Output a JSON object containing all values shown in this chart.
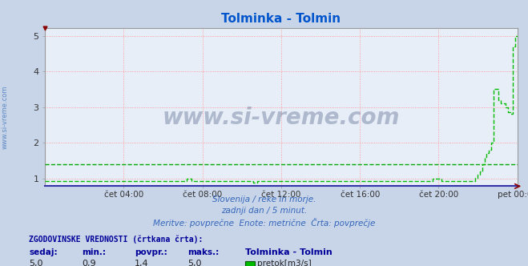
{
  "title": "Tolminka - Tolmin",
  "title_color": "#0055cc",
  "bg_color": "#c8d4e8",
  "plot_bg_color": "#e8eef8",
  "subtitle_lines": [
    "Slovenija / reke in morje.",
    "zadnji dan / 5 minut.",
    "Meritve: povprečne  Enote: metrične  Črta: povprečje"
  ],
  "xlabel_ticks": [
    "čet 04:00",
    "čet 08:00",
    "čet 12:00",
    "čet 16:00",
    "čet 20:00",
    "pet 00:00"
  ],
  "xlabel_tick_positions": [
    0.1667,
    0.3333,
    0.5,
    0.6667,
    0.8333,
    1.0
  ],
  "ylabel_ticks": [
    1,
    2,
    3,
    4,
    5
  ],
  "ylim": [
    0.78,
    5.22
  ],
  "xlim": [
    0.0,
    1.0
  ],
  "avg_line_y": 1.4,
  "avg_line_color": "#00aa00",
  "grid_color": "#ff8888",
  "watermark": "www.si-vreme.com",
  "watermark_color": "#1a3060",
  "watermark_alpha": 0.28,
  "sidebar_text": "www.si-vreme.com",
  "sidebar_color": "#4477bb",
  "stats_label": "ZGODOVINSKE VREDNOSTI (črtkana črta):",
  "stats_color": "#000099",
  "stats_headers": [
    "sedaj:",
    "min.:",
    "povpr.:",
    "maks.:"
  ],
  "stats_values": [
    "5,0",
    "0,9",
    "1,4",
    "5,0"
  ],
  "station_name": "Tolminka - Tolmin",
  "unit_label": "pretok[m3/s]",
  "flow_line_color": "#00bb00",
  "flow_data_x": [
    0.0,
    0.01,
    0.02,
    0.03,
    0.04,
    0.05,
    0.06,
    0.07,
    0.08,
    0.09,
    0.1,
    0.11,
    0.12,
    0.13,
    0.14,
    0.15,
    0.16,
    0.17,
    0.18,
    0.19,
    0.2,
    0.21,
    0.22,
    0.23,
    0.24,
    0.25,
    0.26,
    0.27,
    0.28,
    0.29,
    0.3,
    0.305,
    0.31,
    0.32,
    0.33,
    0.34,
    0.35,
    0.36,
    0.37,
    0.38,
    0.39,
    0.4,
    0.41,
    0.42,
    0.43,
    0.44,
    0.445,
    0.45,
    0.46,
    0.47,
    0.48,
    0.49,
    0.5,
    0.51,
    0.52,
    0.53,
    0.54,
    0.55,
    0.56,
    0.57,
    0.58,
    0.59,
    0.6,
    0.61,
    0.62,
    0.63,
    0.64,
    0.65,
    0.66,
    0.67,
    0.68,
    0.69,
    0.7,
    0.71,
    0.72,
    0.73,
    0.74,
    0.75,
    0.76,
    0.77,
    0.78,
    0.79,
    0.8,
    0.81,
    0.82,
    0.83,
    0.84,
    0.845,
    0.85,
    0.855,
    0.86,
    0.865,
    0.87,
    0.875,
    0.88,
    0.885,
    0.89,
    0.895,
    0.9,
    0.905,
    0.91,
    0.915,
    0.92,
    0.925,
    0.93,
    0.935,
    0.94,
    0.945,
    0.95,
    0.955,
    0.96,
    0.965,
    0.97,
    0.975,
    0.98,
    0.985,
    0.99,
    0.995,
    1.0
  ],
  "flow_data_y": [
    0.93,
    0.93,
    0.93,
    0.93,
    0.93,
    0.93,
    0.93,
    0.93,
    0.93,
    0.93,
    0.93,
    0.93,
    0.93,
    0.93,
    0.93,
    0.93,
    0.93,
    0.93,
    0.93,
    0.93,
    0.93,
    0.93,
    0.93,
    0.93,
    0.93,
    0.93,
    0.93,
    0.93,
    0.93,
    0.93,
    1.0,
    1.0,
    0.93,
    0.93,
    0.93,
    0.93,
    0.93,
    0.93,
    0.93,
    0.93,
    0.93,
    0.93,
    0.93,
    0.93,
    0.93,
    0.88,
    0.88,
    0.93,
    0.93,
    0.93,
    0.93,
    0.93,
    0.93,
    0.93,
    0.93,
    0.93,
    0.93,
    0.93,
    0.93,
    0.93,
    0.93,
    0.93,
    0.93,
    0.93,
    0.93,
    0.93,
    0.93,
    0.93,
    0.93,
    0.93,
    0.93,
    0.93,
    0.93,
    0.93,
    0.93,
    0.93,
    0.93,
    0.93,
    0.93,
    0.93,
    0.93,
    0.93,
    0.93,
    0.93,
    1.0,
    1.0,
    0.93,
    0.93,
    0.93,
    0.93,
    0.93,
    0.93,
    0.93,
    0.93,
    0.93,
    0.93,
    0.93,
    0.93,
    0.93,
    0.93,
    1.02,
    1.1,
    1.2,
    1.4,
    1.6,
    1.7,
    1.8,
    2.0,
    3.5,
    3.5,
    3.2,
    3.1,
    3.1,
    3.0,
    2.85,
    2.82,
    4.7,
    5.0,
    5.0
  ]
}
